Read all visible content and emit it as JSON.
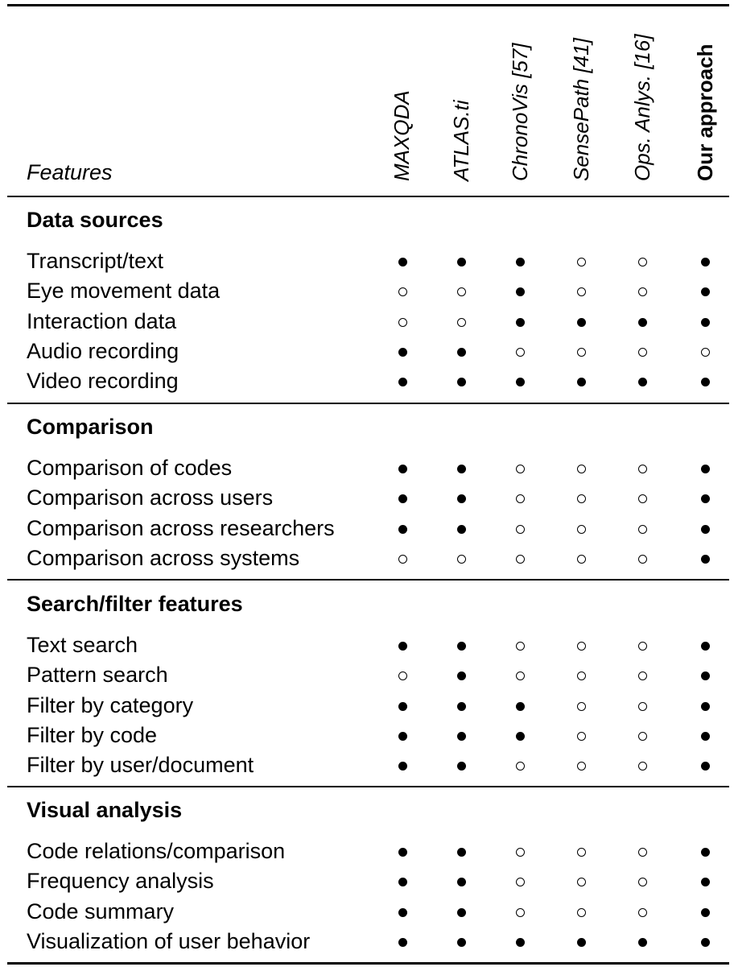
{
  "header": {
    "features_label": "Features",
    "columns": [
      {
        "label": "MAXQDA",
        "style": "italic"
      },
      {
        "label": "ATLAS.ti",
        "style": "italic"
      },
      {
        "label": "ChronoVis [57]",
        "style": "italic"
      },
      {
        "label": "SensePath [41]",
        "style": "italic"
      },
      {
        "label": "Ops. Anlys. [16]",
        "style": "italic"
      },
      {
        "label": "Our approach",
        "style": "bold"
      }
    ]
  },
  "sections": [
    {
      "title": "Data sources",
      "rows": [
        {
          "label": "Transcript/text",
          "marks": [
            1,
            1,
            1,
            0,
            0,
            1
          ]
        },
        {
          "label": "Eye movement data",
          "marks": [
            0,
            0,
            1,
            0,
            0,
            1
          ]
        },
        {
          "label": "Interaction data",
          "marks": [
            0,
            0,
            1,
            1,
            1,
            1
          ]
        },
        {
          "label": "Audio recording",
          "marks": [
            1,
            1,
            0,
            0,
            0,
            0
          ]
        },
        {
          "label": "Video recording",
          "marks": [
            1,
            1,
            1,
            1,
            1,
            1
          ]
        }
      ]
    },
    {
      "title": "Comparison",
      "rows": [
        {
          "label": "Comparison of codes",
          "marks": [
            1,
            1,
            0,
            0,
            0,
            1
          ]
        },
        {
          "label": "Comparison across users",
          "marks": [
            1,
            1,
            0,
            0,
            0,
            1
          ]
        },
        {
          "label": "Comparison across researchers",
          "marks": [
            1,
            1,
            0,
            0,
            0,
            1
          ]
        },
        {
          "label": "Comparison across systems",
          "marks": [
            0,
            0,
            0,
            0,
            0,
            1
          ]
        }
      ]
    },
    {
      "title": "Search/filter features",
      "rows": [
        {
          "label": "Text search",
          "marks": [
            1,
            1,
            0,
            0,
            0,
            1
          ]
        },
        {
          "label": "Pattern search",
          "marks": [
            0,
            1,
            0,
            0,
            0,
            1
          ]
        },
        {
          "label": "Filter by category",
          "marks": [
            1,
            1,
            1,
            0,
            0,
            1
          ]
        },
        {
          "label": "Filter by code",
          "marks": [
            1,
            1,
            1,
            0,
            0,
            1
          ]
        },
        {
          "label": "Filter by user/document",
          "marks": [
            1,
            1,
            0,
            0,
            0,
            1
          ]
        }
      ]
    },
    {
      "title": "Visual analysis",
      "rows": [
        {
          "label": "Code relations/comparison",
          "marks": [
            1,
            1,
            0,
            0,
            0,
            1
          ]
        },
        {
          "label": "Frequency analysis",
          "marks": [
            1,
            1,
            0,
            0,
            0,
            1
          ]
        },
        {
          "label": "Code summary",
          "marks": [
            1,
            1,
            0,
            0,
            0,
            1
          ]
        },
        {
          "label": "Visualization of user behavior",
          "marks": [
            1,
            1,
            1,
            1,
            1,
            1
          ]
        }
      ]
    }
  ]
}
